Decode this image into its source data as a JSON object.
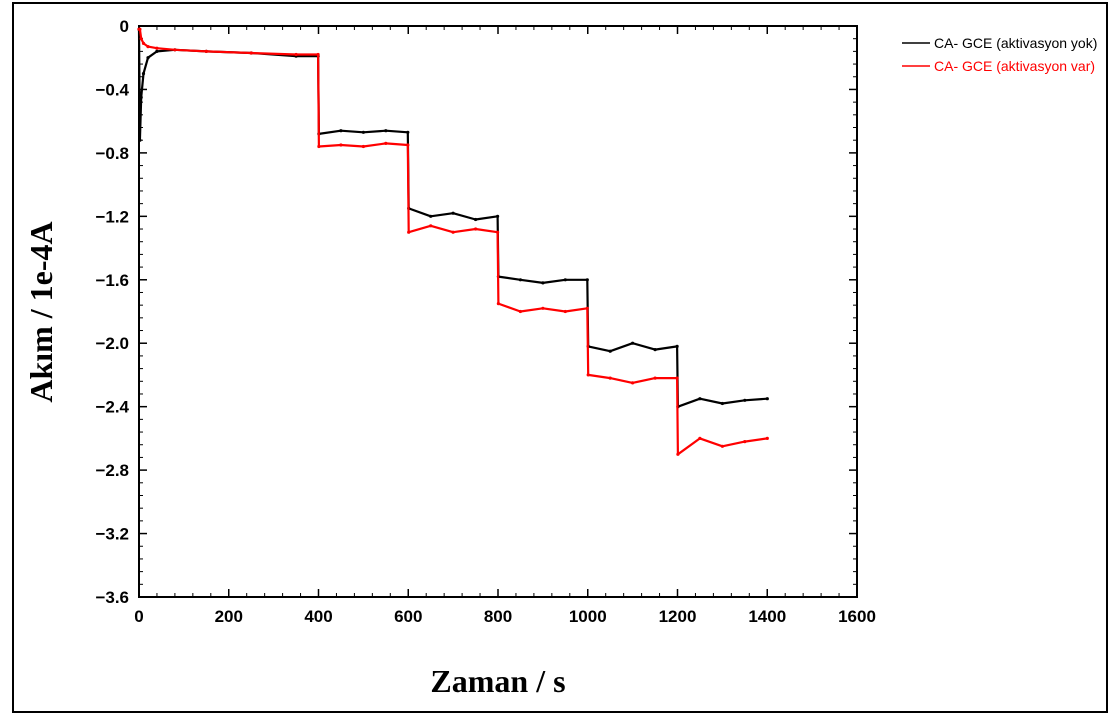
{
  "chart_data": {
    "type": "line",
    "title": "",
    "xlabel": "Zaman / s",
    "ylabel": "Akım / 1e-4A",
    "xlim": [
      0,
      1600
    ],
    "ylim": [
      -3.6,
      0
    ],
    "x_ticks": [
      0,
      200,
      400,
      600,
      800,
      1000,
      1200,
      1400,
      1600
    ],
    "x_tick_labels": [
      "0",
      "200",
      "400",
      "600",
      "800",
      "1000",
      "1200",
      "1400",
      "1600"
    ],
    "y_ticks": [
      0,
      -0.4,
      -0.8,
      -1.2,
      -1.6,
      -2.0,
      -2.4,
      -2.8,
      -3.2,
      -3.6
    ],
    "y_tick_labels": [
      "0",
      "−0.4",
      "−0.8",
      "−1.2",
      "−1.6",
      "−2.0",
      "−2.4",
      "−2.8",
      "−3.2",
      "−3.6"
    ],
    "legend_position": "top-right, outside plot",
    "grid": false,
    "series": [
      {
        "name": "CA- GCE (aktivasyon yok)",
        "color": "#000000",
        "x": [
          0,
          2,
          5,
          10,
          20,
          40,
          80,
          150,
          250,
          350,
          399,
          401,
          450,
          500,
          550,
          599,
          601,
          650,
          700,
          750,
          799,
          801,
          850,
          900,
          950,
          999,
          1001,
          1050,
          1100,
          1150,
          1199,
          1201,
          1250,
          1300,
          1350,
          1400
        ],
        "y": [
          -0.02,
          -0.72,
          -0.45,
          -0.3,
          -0.2,
          -0.16,
          -0.15,
          -0.16,
          -0.17,
          -0.19,
          -0.19,
          -0.68,
          -0.66,
          -0.67,
          -0.66,
          -0.67,
          -1.15,
          -1.2,
          -1.18,
          -1.22,
          -1.2,
          -1.58,
          -1.6,
          -1.62,
          -1.6,
          -1.6,
          -2.02,
          -2.05,
          -2.0,
          -2.04,
          -2.02,
          -2.4,
          -2.35,
          -2.38,
          -2.36,
          -2.35
        ]
      },
      {
        "name": "CA- GCE (aktivasyon var)",
        "color": "#ff0000",
        "x": [
          0,
          2,
          5,
          10,
          20,
          40,
          80,
          150,
          250,
          350,
          399,
          401,
          450,
          500,
          550,
          599,
          601,
          650,
          700,
          750,
          799,
          801,
          850,
          900,
          950,
          999,
          1001,
          1050,
          1100,
          1150,
          1199,
          1201,
          1250,
          1300,
          1350,
          1400
        ],
        "y": [
          -0.02,
          -0.02,
          -0.08,
          -0.11,
          -0.13,
          -0.14,
          -0.15,
          -0.16,
          -0.17,
          -0.18,
          -0.18,
          -0.76,
          -0.75,
          -0.76,
          -0.74,
          -0.75,
          -1.3,
          -1.26,
          -1.3,
          -1.28,
          -1.3,
          -1.75,
          -1.8,
          -1.78,
          -1.8,
          -1.78,
          -2.2,
          -2.22,
          -2.25,
          -2.22,
          -2.22,
          -2.7,
          -2.6,
          -2.65,
          -2.62,
          -2.6
        ]
      }
    ]
  }
}
